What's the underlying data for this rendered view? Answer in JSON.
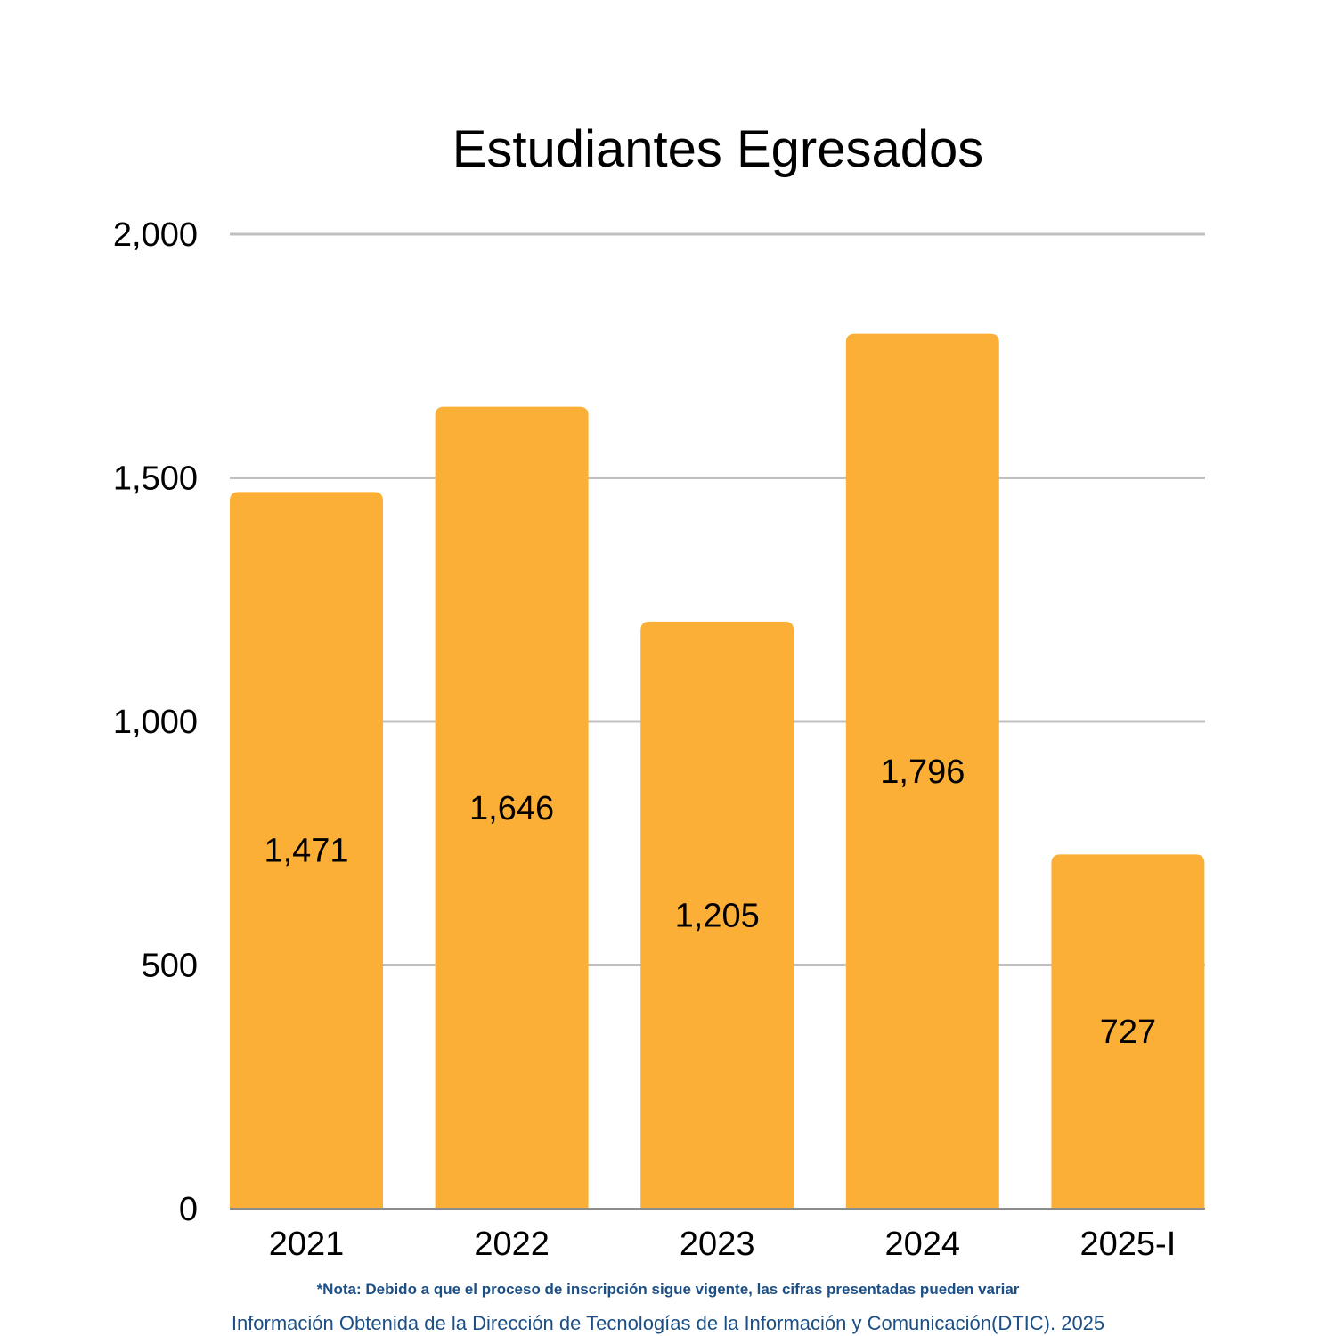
{
  "colors": {
    "bar": "#fcaf36",
    "grid": "#c0c0c0",
    "axis": "#8c8c8c",
    "footer_text": "#1c4f86"
  },
  "chart_data": {
    "type": "bar",
    "title": "Estudiantes Egresados",
    "categories": [
      "2021",
      "2022",
      "2023",
      "2024",
      "2025-I"
    ],
    "values": [
      1471,
      1646,
      1205,
      1796,
      727
    ],
    "value_labels": [
      "1,471",
      "1,646",
      "1,205",
      "1,796",
      "727"
    ],
    "ylim": [
      0,
      2000
    ],
    "yticks": [
      0,
      500,
      1000,
      1500,
      2000
    ],
    "ytick_labels": [
      "0",
      "500",
      "1,000",
      "1,500",
      "2,000"
    ],
    "grid": true,
    "legend": "none"
  },
  "footer": {
    "note": "*Nota: Debido a que el proceso de inscripción sigue vigente, las cifras presentadas pueden variar",
    "source": "Información Obtenida de la Dirección de Tecnologías de la Información y Comunicación(DTIC). 2025"
  }
}
